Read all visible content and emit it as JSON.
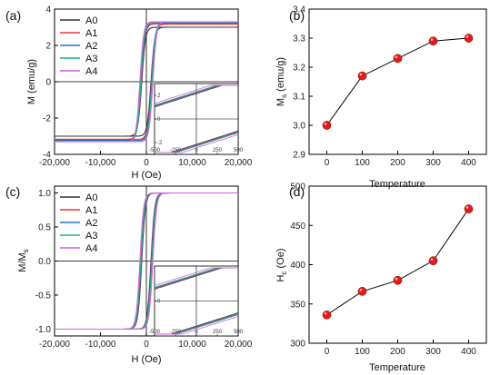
{
  "series_colors": {
    "A0": "#333333",
    "A1": "#e8363f",
    "A2": "#2f6fb8",
    "A3": "#22b27a",
    "A4": "#d35fe0"
  },
  "marker_color": "#e31a1c",
  "panels": {
    "a": {
      "label": "(a)",
      "xlabel": "H (Oe)",
      "ylabel": "M (emu/g)"
    },
    "b": {
      "label": "(b)",
      "xlabel": "Temperature",
      "ylabel_main": "M",
      "ylabel_sub": "s",
      "ylabel_unit": " (emu/g)"
    },
    "c": {
      "label": "(c)",
      "xlabel": "H (Oe)",
      "ylabel_main": "M/M",
      "ylabel_sub": "s"
    },
    "d": {
      "label": "(d)",
      "xlabel": "Temperature",
      "ylabel_main": "H",
      "ylabel_sub": "c",
      "ylabel_unit": " (Oe)"
    }
  },
  "chart_data": [
    {
      "panel": "a",
      "type": "line",
      "xlabel": "H (Oe)",
      "ylabel": "M (emu/g)",
      "xlim": [
        -20000,
        20000
      ],
      "ylim": [
        -4,
        4
      ],
      "xticks": [
        -20000,
        -10000,
        0,
        10000,
        20000
      ],
      "xtick_labels": [
        "-20,000",
        "-10,000",
        "0",
        "10,000",
        "20,000"
      ],
      "yticks": [
        -4,
        -2,
        0,
        2,
        4
      ],
      "ytick_labels": [
        "-4",
        "-2",
        "0",
        "2",
        "4"
      ],
      "legend": "top-left",
      "series": [
        {
          "name": "A0",
          "ms": 3.0,
          "hc": 336
        },
        {
          "name": "A1",
          "ms": 3.17,
          "hc": 366
        },
        {
          "name": "A2",
          "ms": 3.23,
          "hc": 380
        },
        {
          "name": "A3",
          "ms": 3.29,
          "hc": 405
        },
        {
          "name": "A4",
          "ms": 3.3,
          "hc": 471
        }
      ],
      "inset": {
        "xlim": [
          -500,
          500
        ],
        "xticks": [
          -500,
          -250,
          0,
          250,
          500
        ],
        "xtick_labels": [
          "-500",
          "-250",
          "0",
          "250",
          "500"
        ],
        "ylim": [
          -3,
          3
        ],
        "yticks": [
          -2,
          0,
          2
        ],
        "ytick_labels": [
          "-2",
          "0",
          "2"
        ]
      }
    },
    {
      "panel": "b",
      "type": "line",
      "xlabel": "Temperature",
      "ylabel": "Ms (emu/g)",
      "x": [
        0,
        100,
        200,
        300,
        400
      ],
      "y": [
        3.0,
        3.17,
        3.23,
        3.29,
        3.3
      ],
      "xlim": [
        -50,
        450
      ],
      "ylim": [
        2.9,
        3.4
      ],
      "xticks": [
        0,
        100,
        200,
        300,
        400
      ],
      "xtick_labels": [
        "0",
        "100",
        "200",
        "300",
        "400"
      ],
      "yticks": [
        2.9,
        3.0,
        3.1,
        3.2,
        3.3,
        3.4
      ],
      "ytick_labels": [
        "2.9",
        "3.0",
        "3.1",
        "3.2",
        "3.3",
        "3.4"
      ]
    },
    {
      "panel": "c",
      "type": "line",
      "xlabel": "H (Oe)",
      "ylabel": "M/Ms",
      "xlim": [
        -20000,
        20000
      ],
      "ylim": [
        -1.1,
        1.1
      ],
      "xticks": [
        -20000,
        -10000,
        0,
        10000,
        20000
      ],
      "xtick_labels": [
        "-20,000",
        "-10,000",
        "0",
        "10,000",
        "20,000"
      ],
      "yticks": [
        -1.0,
        -0.5,
        0.0,
        0.5,
        1.0
      ],
      "ytick_labels": [
        "-1.0",
        "-0.5",
        "0.0",
        "0.5",
        "1.0"
      ],
      "legend": "top-left",
      "series": [
        {
          "name": "A0",
          "ms": 1.0,
          "hc": 336
        },
        {
          "name": "A1",
          "ms": 1.0,
          "hc": 366
        },
        {
          "name": "A2",
          "ms": 1.0,
          "hc": 380
        },
        {
          "name": "A3",
          "ms": 1.0,
          "hc": 405
        },
        {
          "name": "A4",
          "ms": 1.0,
          "hc": 471
        }
      ],
      "inset": {
        "xlim": [
          -500,
          500
        ],
        "xticks": [
          -500,
          -250,
          0,
          250,
          500
        ],
        "xtick_labels": [
          "-500",
          "-250",
          "0",
          "250",
          "500"
        ],
        "ylim": [
          -1,
          1
        ],
        "yticks": [
          0
        ],
        "ytick_labels": [
          "0"
        ]
      }
    },
    {
      "panel": "d",
      "type": "line",
      "xlabel": "Temperature",
      "ylabel": "Hc (Oe)",
      "x": [
        0,
        100,
        200,
        300,
        400
      ],
      "y": [
        336,
        366,
        380,
        405,
        471
      ],
      "xlim": [
        -50,
        450
      ],
      "ylim": [
        300,
        500
      ],
      "xticks": [
        0,
        100,
        200,
        300,
        400
      ],
      "xtick_labels": [
        "0",
        "100",
        "200",
        "300",
        "400"
      ],
      "yticks": [
        300,
        350,
        400,
        450,
        500
      ],
      "ytick_labels": [
        "300",
        "350",
        "400",
        "450",
        "500"
      ]
    }
  ]
}
